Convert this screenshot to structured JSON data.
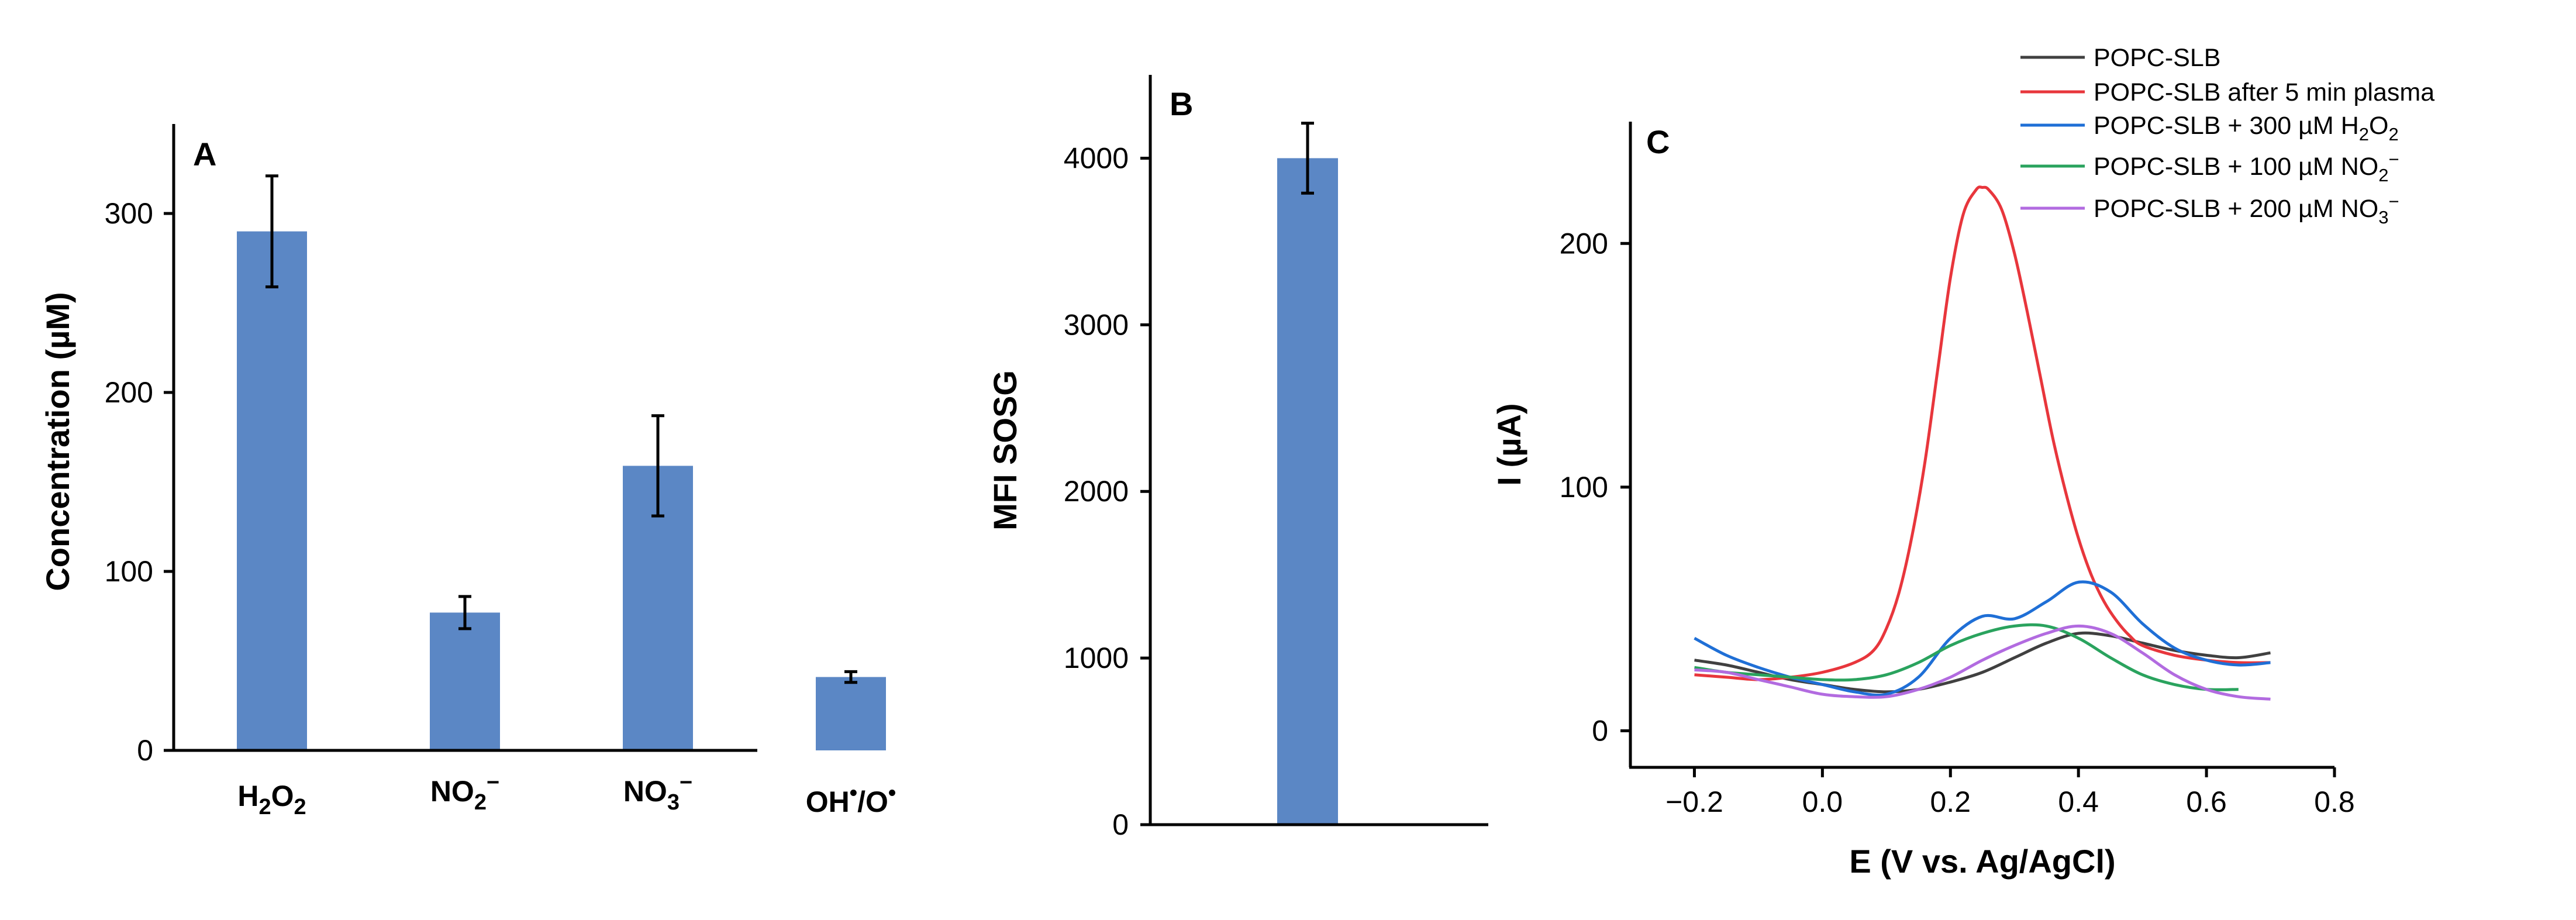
{
  "chart_data": [
    {
      "panel": "A",
      "type": "bar",
      "categories": [
        "H2O2",
        "NO2−",
        "NO3−",
        "OH•/O•"
      ],
      "values": [
        290,
        77,
        159,
        41
      ],
      "errors": [
        31,
        9,
        28,
        3
      ],
      "ylabel": "Concentration (µM)",
      "xlabel": "",
      "ylim": [
        0,
        350
      ],
      "yticks": [
        0,
        100,
        200,
        300
      ],
      "color": "#5b87c5"
    },
    {
      "panel": "B",
      "type": "bar",
      "categories": [
        ""
      ],
      "values": [
        4000
      ],
      "errors": [
        210
      ],
      "ylabel": "MFI SOSG",
      "xlabel": "",
      "ylim": [
        0,
        4500
      ],
      "yticks": [
        0,
        1000,
        2000,
        3000,
        4000
      ],
      "color": "#5b87c5"
    },
    {
      "panel": "C",
      "type": "line",
      "xlabel": "E (V vs. Ag/AgCl)",
      "ylabel": "I (µA)",
      "xlim": [
        -0.3,
        0.8
      ],
      "ylim": [
        -15,
        250
      ],
      "xticks": [
        -0.2,
        0.0,
        0.2,
        0.4,
        0.6,
        0.8
      ],
      "xtick_labels": [
        "−0.2",
        "0.0",
        "0.2",
        "0.4",
        "0.6",
        "0.8"
      ],
      "yticks": [
        0,
        100,
        200
      ],
      "series": [
        {
          "name": "POPC-SLB",
          "color": "#404040",
          "x": [
            -0.2,
            -0.15,
            -0.1,
            -0.05,
            0,
            0.05,
            0.1,
            0.15,
            0.2,
            0.25,
            0.3,
            0.35,
            0.4,
            0.45,
            0.5,
            0.55,
            0.6,
            0.65,
            0.7
          ],
          "y": [
            29,
            27,
            24,
            21,
            19,
            17,
            16,
            17,
            20,
            24,
            30,
            36,
            40,
            39,
            36,
            33,
            31,
            30,
            32
          ]
        },
        {
          "name": "POPC-SLB after 5 min plasma",
          "color": "#e8363c",
          "x": [
            -0.2,
            -0.15,
            -0.1,
            -0.05,
            0,
            0.05,
            0.08,
            0.1,
            0.12,
            0.14,
            0.16,
            0.18,
            0.2,
            0.22,
            0.24,
            0.25,
            0.26,
            0.28,
            0.3,
            0.32,
            0.34,
            0.36,
            0.38,
            0.4,
            0.42,
            0.44,
            0.46,
            0.48,
            0.5,
            0.55,
            0.6,
            0.65,
            0.7
          ],
          "y": [
            23,
            22,
            21,
            22,
            24,
            28,
            33,
            42,
            57,
            80,
            110,
            148,
            186,
            212,
            222,
            223,
            222,
            214,
            196,
            172,
            146,
            120,
            98,
            79,
            64,
            53,
            45,
            39,
            35,
            31,
            29,
            28,
            28
          ]
        },
        {
          "name": "POPC-SLB + 300 µM H2O2",
          "color": "#1f6fd6",
          "x": [
            -0.2,
            -0.15,
            -0.1,
            -0.05,
            0,
            0.05,
            0.1,
            0.15,
            0.2,
            0.25,
            0.3,
            0.35,
            0.4,
            0.45,
            0.5,
            0.55,
            0.6,
            0.65,
            0.7
          ],
          "y": [
            38,
            31,
            26,
            22,
            19,
            16,
            15,
            22,
            38,
            47,
            46,
            53,
            61,
            57,
            44,
            34,
            29,
            27,
            28
          ]
        },
        {
          "name": "POPC-SLB + 100 µM NO2−",
          "color": "#2aa35e",
          "x": [
            -0.2,
            -0.15,
            -0.1,
            -0.05,
            0,
            0.05,
            0.1,
            0.15,
            0.2,
            0.25,
            0.3,
            0.35,
            0.4,
            0.45,
            0.5,
            0.55,
            0.6,
            0.65
          ],
          "y": [
            26,
            24,
            23,
            22,
            21,
            21,
            23,
            28,
            35,
            40,
            43,
            43,
            38,
            30,
            23,
            19,
            17,
            17
          ]
        },
        {
          "name": "POPC-SLB + 200 µM NO3−",
          "color": "#b26be0",
          "x": [
            -0.2,
            -0.15,
            -0.1,
            -0.05,
            0,
            0.05,
            0.1,
            0.15,
            0.2,
            0.25,
            0.3,
            0.35,
            0.4,
            0.45,
            0.5,
            0.55,
            0.6,
            0.65,
            0.7
          ],
          "y": [
            25,
            24,
            21,
            18,
            15,
            14,
            14,
            17,
            22,
            29,
            35,
            40,
            43,
            40,
            32,
            23,
            17,
            14,
            13
          ]
        }
      ]
    }
  ],
  "panel_a": {
    "tag": "A",
    "ylabel": "Concentration (µM)",
    "ytick_labels": [
      "0",
      "100",
      "200",
      "300"
    ],
    "cat_labels": [
      {
        "base": "H",
        "s1": "2",
        "mid": "O",
        "s2": "2",
        "sup": ""
      },
      {
        "base": "NO",
        "s1": "2",
        "mid": "",
        "s2": "",
        "sup": "−"
      },
      {
        "base": "NO",
        "s1": "3",
        "mid": "",
        "s2": "",
        "sup": "−"
      },
      {
        "base": "OH",
        "s1": "",
        "mid": "",
        "s2": "",
        "sup": "•",
        "tail": "/O",
        "sup2": "•"
      }
    ]
  },
  "panel_b": {
    "tag": "B",
    "ylabel": "MFI SOSG",
    "ytick_labels": [
      "0",
      "1000",
      "2000",
      "3000",
      "4000"
    ]
  },
  "panel_c": {
    "tag": "C",
    "xlabel": "E (V vs. Ag/AgCl)",
    "ylabel": "I (µA)",
    "ytick_labels": [
      "0",
      "100",
      "200"
    ],
    "legend": [
      {
        "base": "POPC-SLB",
        "sub": "",
        "mid": "",
        "sub2": "",
        "sup": ""
      },
      {
        "base": "POPC-SLB after 5 min plasma",
        "sub": "",
        "mid": "",
        "sub2": "",
        "sup": ""
      },
      {
        "base": "POPC-SLB + 300 µM H",
        "sub": "2",
        "mid": "O",
        "sub2": "2",
        "sup": ""
      },
      {
        "base": "POPC-SLB + 100 µM NO",
        "sub": "2",
        "mid": "",
        "sub2": "",
        "sup": "−"
      },
      {
        "base": "POPC-SLB + 200 µM NO",
        "sub": "3",
        "mid": "",
        "sub2": "",
        "sup": "−"
      }
    ]
  }
}
